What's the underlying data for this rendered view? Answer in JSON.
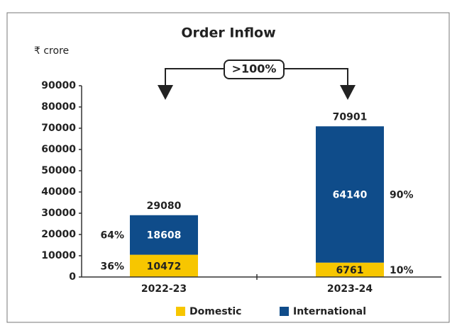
{
  "chart_data": {
    "type": "stacked_bar",
    "title": "Order Inflow",
    "unit_label": "₹ crore",
    "annotation": ">100%",
    "categories": [
      "2022-23",
      "2023-24"
    ],
    "series": [
      {
        "name": "Domestic",
        "color": "#f7c600",
        "values": [
          10472,
          6761
        ],
        "percent_labels": [
          "36%",
          "10%"
        ]
      },
      {
        "name": "International",
        "color": "#0f4c8a",
        "values": [
          18608,
          64140
        ],
        "percent_labels": [
          "64%",
          "90%"
        ]
      }
    ],
    "total_labels": [
      29080,
      70901
    ],
    "ylim": [
      0,
      90000
    ],
    "yticks": [
      0,
      10000,
      20000,
      30000,
      40000,
      50000,
      60000,
      70000,
      80000,
      90000
    ],
    "legend": "bottom"
  }
}
